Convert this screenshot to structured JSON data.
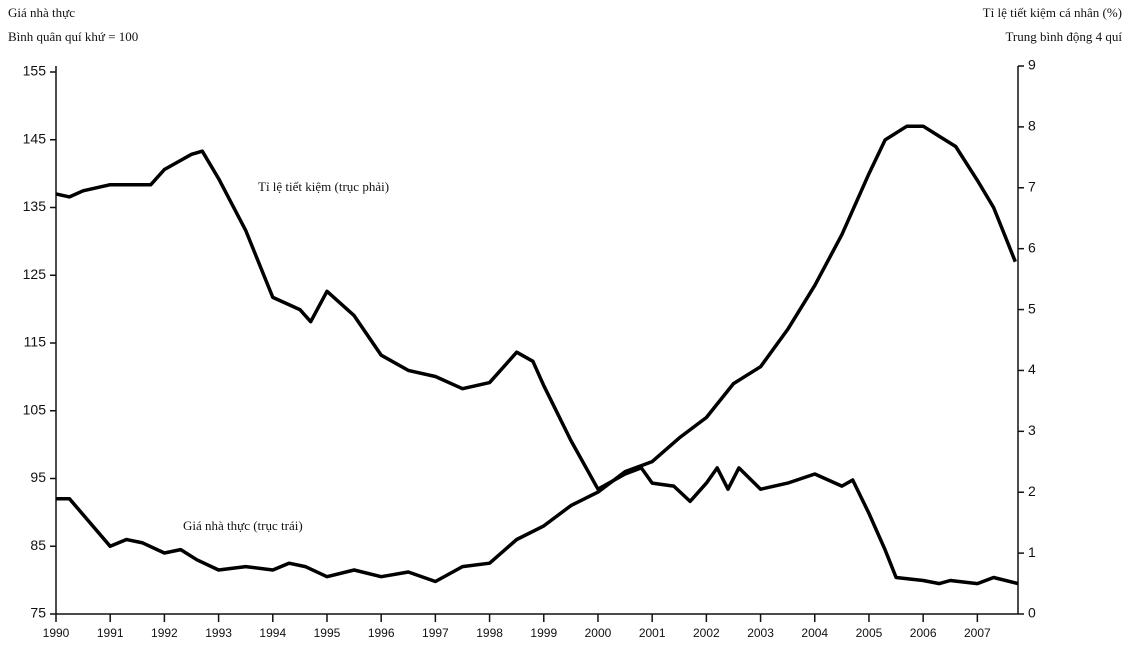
{
  "chart_data": {
    "type": "line",
    "y_title": [
      "Giá nhà thực",
      "Bình quân quí khứ = 100"
    ],
    "y2_title": [
      "Tỉ lệ tiết kiệm cá nhân (%)",
      "Trung bình động 4 quí"
    ],
    "annotations": [
      "Tỉ lệ tiết kiệm (trục phải)",
      "Giá nhà thực (trục trái)"
    ],
    "xlim": [
      1990,
      2007.75
    ],
    "xticks": [
      1990,
      1991,
      1992,
      1993,
      1994,
      1995,
      1996,
      1997,
      1998,
      1999,
      2000,
      2001,
      2002,
      2003,
      2004,
      2005,
      2006,
      2007
    ],
    "ylim": [
      75,
      155
    ],
    "yticks": [
      75,
      85,
      95,
      105,
      115,
      125,
      135,
      145,
      155
    ],
    "y2lim": [
      0,
      9
    ],
    "y2ticks": [
      0,
      1,
      2,
      3,
      4,
      5,
      6,
      7,
      8,
      9
    ],
    "series": [
      {
        "name": "Tỉ lệ tiết kiệm (trục phải)",
        "color": "#000000",
        "axis": "y2",
        "x": [
          1990,
          1990.25,
          1990.5,
          1991,
          1991.5,
          1991.75,
          1992,
          1992.3,
          1992.5,
          1992.7,
          1993,
          1993.5,
          1994,
          1994.5,
          1994.7,
          1995,
          1995.5,
          1996,
          1996.5,
          1997,
          1997.5,
          1998,
          1998.5,
          1998.8,
          1999,
          1999.5,
          2000,
          2000.5,
          2000.8,
          2001,
          2001.4,
          2001.7,
          2002,
          2002.2,
          2002.4,
          2002.6,
          2003,
          2003.5,
          2004,
          2004.5,
          2004.7,
          2005,
          2005.3,
          2005.5,
          2006,
          2006.3,
          2006.5,
          2007,
          2007.3,
          2007.75
        ],
        "values": [
          6.9,
          6.85,
          6.95,
          7.05,
          7.05,
          7.05,
          7.3,
          7.45,
          7.55,
          7.6,
          7.15,
          6.3,
          5.2,
          5.0,
          4.8,
          5.3,
          4.9,
          4.25,
          4.0,
          3.9,
          3.7,
          3.8,
          4.3,
          4.15,
          3.75,
          2.85,
          2.05,
          2.3,
          2.4,
          2.15,
          2.1,
          1.85,
          2.15,
          2.4,
          2.05,
          2.4,
          2.05,
          2.15,
          2.3,
          2.1,
          2.2,
          1.65,
          1.05,
          0.6,
          0.55,
          0.5,
          0.55,
          0.5,
          0.6,
          0.5
        ]
      },
      {
        "name": "Giá nhà thực (trục trái)",
        "color": "#000000",
        "axis": "y",
        "x": [
          1990,
          1990.25,
          1991,
          1991.3,
          1991.6,
          1992,
          1992.3,
          1992.6,
          1993,
          1993.5,
          1994,
          1994.3,
          1994.6,
          1995,
          1995.5,
          1996,
          1996.5,
          1997,
          1997.5,
          1998,
          1998.5,
          1999,
          1999.5,
          2000,
          2000.5,
          2001,
          2001.5,
          2002,
          2002.5,
          2003,
          2003.5,
          2004,
          2004.5,
          2005,
          2005.3,
          2005.7,
          2006,
          2006.3,
          2006.6,
          2007,
          2007.3,
          2007.5,
          2007.7
        ],
        "values": [
          92,
          92,
          85,
          86,
          85.5,
          84,
          84.5,
          83,
          81.5,
          82,
          81.5,
          82.5,
          82,
          80.5,
          81.5,
          80.5,
          81.2,
          79.8,
          82,
          82.5,
          86,
          88,
          91,
          93,
          96,
          97.5,
          101,
          104,
          109,
          111.5,
          117,
          123.5,
          131,
          140,
          145,
          147,
          147,
          145.5,
          144,
          139,
          135,
          131,
          127
        ]
      }
    ]
  }
}
